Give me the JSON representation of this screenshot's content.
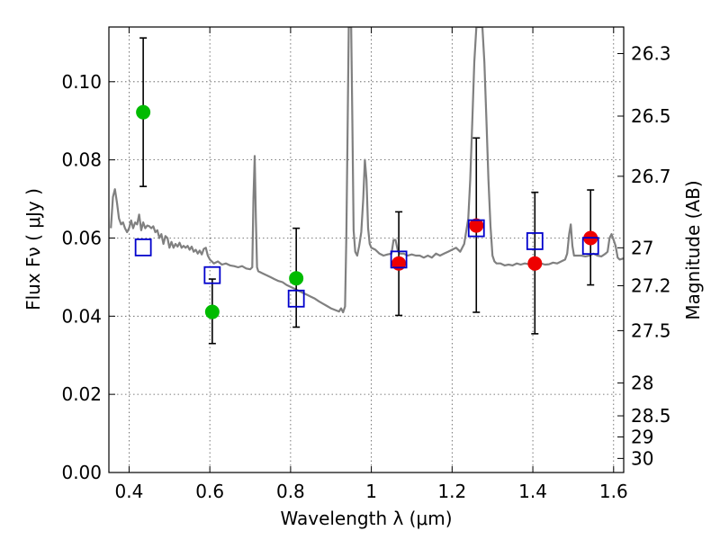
{
  "chart_data": {
    "type": "scatter",
    "xlabel": "Wavelength  λ (μm)",
    "ylabel": "Flux  Fν  ( μJy )",
    "ylabel_right": "Magnitude (AB)",
    "xlim": [
      0.35,
      1.625
    ],
    "ylim": [
      0.0,
      0.114
    ],
    "grid": true,
    "x_ticks": [
      0.4,
      0.6,
      0.8,
      1.0,
      1.2,
      1.4,
      1.6
    ],
    "x_tick_labels": [
      "0.4",
      "0.6",
      "0.8",
      "1",
      "1.2",
      "1.4",
      "1.6"
    ],
    "y_ticks": [
      0.0,
      0.02,
      0.04,
      0.06,
      0.08,
      0.1
    ],
    "y_tick_labels": [
      "0.00",
      "0.02",
      "0.04",
      "0.06",
      "0.08",
      "0.10"
    ],
    "mag_ticks": [
      {
        "label": "26.3",
        "flux": 0.1072
      },
      {
        "label": "26.5",
        "flux": 0.0912
      },
      {
        "label": "26.7",
        "flux": 0.0758
      },
      {
        "label": "27",
        "flux": 0.0575
      },
      {
        "label": "27.2",
        "flux": 0.0478
      },
      {
        "label": "27.5",
        "flux": 0.0363
      },
      {
        "label": "28",
        "flux": 0.0229
      },
      {
        "label": "28.5",
        "flux": 0.0145
      },
      {
        "label": "29",
        "flux": 0.0091
      },
      {
        "label": "30",
        "flux": 0.0036
      }
    ],
    "series": [
      {
        "color": "#808080",
        "marker": "line",
        "points": [
          [
            0.355,
            0.0625
          ],
          [
            0.36,
            0.0705
          ],
          [
            0.365,
            0.0725
          ],
          [
            0.37,
            0.069
          ],
          [
            0.375,
            0.065
          ],
          [
            0.38,
            0.0635
          ],
          [
            0.385,
            0.064
          ],
          [
            0.39,
            0.0625
          ],
          [
            0.395,
            0.0615
          ],
          [
            0.4,
            0.0625
          ],
          [
            0.405,
            0.0645
          ],
          [
            0.41,
            0.0625
          ],
          [
            0.415,
            0.064
          ],
          [
            0.42,
            0.0635
          ],
          [
            0.425,
            0.066
          ],
          [
            0.43,
            0.062
          ],
          [
            0.435,
            0.064
          ],
          [
            0.44,
            0.0625
          ],
          [
            0.445,
            0.0632
          ],
          [
            0.45,
            0.063
          ],
          [
            0.455,
            0.0625
          ],
          [
            0.46,
            0.063
          ],
          [
            0.465,
            0.0615
          ],
          [
            0.47,
            0.062
          ],
          [
            0.475,
            0.06
          ],
          [
            0.48,
            0.061
          ],
          [
            0.485,
            0.0585
          ],
          [
            0.49,
            0.0605
          ],
          [
            0.495,
            0.06
          ],
          [
            0.5,
            0.0575
          ],
          [
            0.505,
            0.059
          ],
          [
            0.51,
            0.0575
          ],
          [
            0.515,
            0.0585
          ],
          [
            0.52,
            0.0578
          ],
          [
            0.525,
            0.0588
          ],
          [
            0.53,
            0.0575
          ],
          [
            0.535,
            0.058
          ],
          [
            0.54,
            0.0575
          ],
          [
            0.545,
            0.058
          ],
          [
            0.55,
            0.057
          ],
          [
            0.555,
            0.0578
          ],
          [
            0.56,
            0.0565
          ],
          [
            0.565,
            0.057
          ],
          [
            0.57,
            0.056
          ],
          [
            0.575,
            0.0568
          ],
          [
            0.58,
            0.0558
          ],
          [
            0.585,
            0.0572
          ],
          [
            0.59,
            0.0575
          ],
          [
            0.595,
            0.0555
          ],
          [
            0.6,
            0.0545
          ],
          [
            0.61,
            0.0535
          ],
          [
            0.62,
            0.054
          ],
          [
            0.63,
            0.0532
          ],
          [
            0.64,
            0.0535
          ],
          [
            0.65,
            0.053
          ],
          [
            0.66,
            0.0528
          ],
          [
            0.67,
            0.0525
          ],
          [
            0.68,
            0.0528
          ],
          [
            0.69,
            0.0522
          ],
          [
            0.7,
            0.052
          ],
          [
            0.705,
            0.0525
          ],
          [
            0.708,
            0.07
          ],
          [
            0.711,
            0.081
          ],
          [
            0.714,
            0.065
          ],
          [
            0.717,
            0.0525
          ],
          [
            0.72,
            0.0515
          ],
          [
            0.73,
            0.051
          ],
          [
            0.74,
            0.0505
          ],
          [
            0.75,
            0.05
          ],
          [
            0.76,
            0.0495
          ],
          [
            0.77,
            0.049
          ],
          [
            0.78,
            0.0487
          ],
          [
            0.79,
            0.048
          ],
          [
            0.8,
            0.0475
          ],
          [
            0.81,
            0.047
          ],
          [
            0.82,
            0.0465
          ],
          [
            0.83,
            0.046
          ],
          [
            0.84,
            0.0455
          ],
          [
            0.85,
            0.045
          ],
          [
            0.86,
            0.0445
          ],
          [
            0.87,
            0.0438
          ],
          [
            0.88,
            0.0432
          ],
          [
            0.89,
            0.0426
          ],
          [
            0.9,
            0.042
          ],
          [
            0.91,
            0.0416
          ],
          [
            0.92,
            0.0412
          ],
          [
            0.925,
            0.042
          ],
          [
            0.93,
            0.041
          ],
          [
            0.935,
            0.0425
          ],
          [
            0.938,
            0.06
          ],
          [
            0.941,
            0.085
          ],
          [
            0.944,
            0.114
          ],
          [
            0.947,
            0.114
          ],
          [
            0.95,
            0.114
          ],
          [
            0.953,
            0.09
          ],
          [
            0.956,
            0.062
          ],
          [
            0.96,
            0.0565
          ],
          [
            0.965,
            0.0555
          ],
          [
            0.97,
            0.058
          ],
          [
            0.975,
            0.0615
          ],
          [
            0.98,
            0.07
          ],
          [
            0.984,
            0.08
          ],
          [
            0.988,
            0.075
          ],
          [
            0.992,
            0.0625
          ],
          [
            0.996,
            0.0585
          ],
          [
            1.0,
            0.0575
          ],
          [
            1.01,
            0.057
          ],
          [
            1.02,
            0.056
          ],
          [
            1.03,
            0.0555
          ],
          [
            1.04,
            0.0558
          ],
          [
            1.05,
            0.056
          ],
          [
            1.055,
            0.0595
          ],
          [
            1.06,
            0.0595
          ],
          [
            1.065,
            0.057
          ],
          [
            1.07,
            0.056
          ],
          [
            1.08,
            0.056
          ],
          [
            1.09,
            0.0555
          ],
          [
            1.1,
            0.0558
          ],
          [
            1.11,
            0.0555
          ],
          [
            1.12,
            0.0555
          ],
          [
            1.13,
            0.055
          ],
          [
            1.14,
            0.0555
          ],
          [
            1.15,
            0.055
          ],
          [
            1.16,
            0.056
          ],
          [
            1.17,
            0.0555
          ],
          [
            1.18,
            0.056
          ],
          [
            1.19,
            0.0565
          ],
          [
            1.2,
            0.057
          ],
          [
            1.21,
            0.0575
          ],
          [
            1.22,
            0.0565
          ],
          [
            1.23,
            0.0585
          ],
          [
            1.24,
            0.065
          ],
          [
            1.245,
            0.075
          ],
          [
            1.25,
            0.09
          ],
          [
            1.255,
            0.105
          ],
          [
            1.26,
            0.114
          ],
          [
            1.265,
            0.114
          ],
          [
            1.27,
            0.114
          ],
          [
            1.275,
            0.114
          ],
          [
            1.28,
            0.105
          ],
          [
            1.285,
            0.09
          ],
          [
            1.29,
            0.075
          ],
          [
            1.295,
            0.063
          ],
          [
            1.3,
            0.0555
          ],
          [
            1.305,
            0.054
          ],
          [
            1.31,
            0.0535
          ],
          [
            1.32,
            0.0535
          ],
          [
            1.33,
            0.053
          ],
          [
            1.34,
            0.0532
          ],
          [
            1.35,
            0.053
          ],
          [
            1.36,
            0.0535
          ],
          [
            1.37,
            0.0532
          ],
          [
            1.38,
            0.0535
          ],
          [
            1.39,
            0.0533
          ],
          [
            1.4,
            0.0535
          ],
          [
            1.41,
            0.0533
          ],
          [
            1.42,
            0.0535
          ],
          [
            1.43,
            0.0532
          ],
          [
            1.44,
            0.0533
          ],
          [
            1.45,
            0.0537
          ],
          [
            1.46,
            0.0535
          ],
          [
            1.47,
            0.054
          ],
          [
            1.48,
            0.0545
          ],
          [
            1.485,
            0.056
          ],
          [
            1.49,
            0.061
          ],
          [
            1.494,
            0.0635
          ],
          [
            1.498,
            0.058
          ],
          [
            1.502,
            0.0555
          ],
          [
            1.51,
            0.0555
          ],
          [
            1.52,
            0.0555
          ],
          [
            1.53,
            0.0553
          ],
          [
            1.54,
            0.0555
          ],
          [
            1.55,
            0.056
          ],
          [
            1.56,
            0.0555
          ],
          [
            1.57,
            0.0553
          ],
          [
            1.58,
            0.056
          ],
          [
            1.585,
            0.0565
          ],
          [
            1.59,
            0.06
          ],
          [
            1.595,
            0.061
          ],
          [
            1.6,
            0.0595
          ],
          [
            1.605,
            0.058
          ],
          [
            1.61,
            0.055
          ],
          [
            1.615,
            0.0545
          ],
          [
            1.625,
            0.0548
          ]
        ]
      },
      {
        "color": "#00bb00",
        "marker": "circle",
        "points": [
          {
            "x": 0.435,
            "y": 0.0922,
            "ylo": 0.0732,
            "yhi": 0.1112
          },
          {
            "x": 0.606,
            "y": 0.0411,
            "ylo": 0.033,
            "yhi": 0.0495
          },
          {
            "x": 0.814,
            "y": 0.0497,
            "ylo": 0.0372,
            "yhi": 0.0625
          }
        ]
      },
      {
        "color": "#ee0000",
        "marker": "circle",
        "points": [
          {
            "x": 1.068,
            "y": 0.0535,
            "ylo": 0.0402,
            "yhi": 0.0667
          },
          {
            "x": 1.26,
            "y": 0.0632,
            "ylo": 0.041,
            "yhi": 0.0856
          },
          {
            "x": 1.405,
            "y": 0.0535,
            "ylo": 0.0355,
            "yhi": 0.0717
          },
          {
            "x": 1.543,
            "y": 0.06,
            "ylo": 0.048,
            "yhi": 0.0723
          }
        ]
      },
      {
        "color": "#0000cc",
        "marker": "square",
        "points": [
          {
            "x": 0.435,
            "y": 0.0576
          },
          {
            "x": 0.606,
            "y": 0.0505
          },
          {
            "x": 0.814,
            "y": 0.0445
          },
          {
            "x": 1.068,
            "y": 0.0545
          },
          {
            "x": 1.26,
            "y": 0.0625
          },
          {
            "x": 1.405,
            "y": 0.0592
          },
          {
            "x": 1.543,
            "y": 0.058
          }
        ]
      }
    ]
  }
}
